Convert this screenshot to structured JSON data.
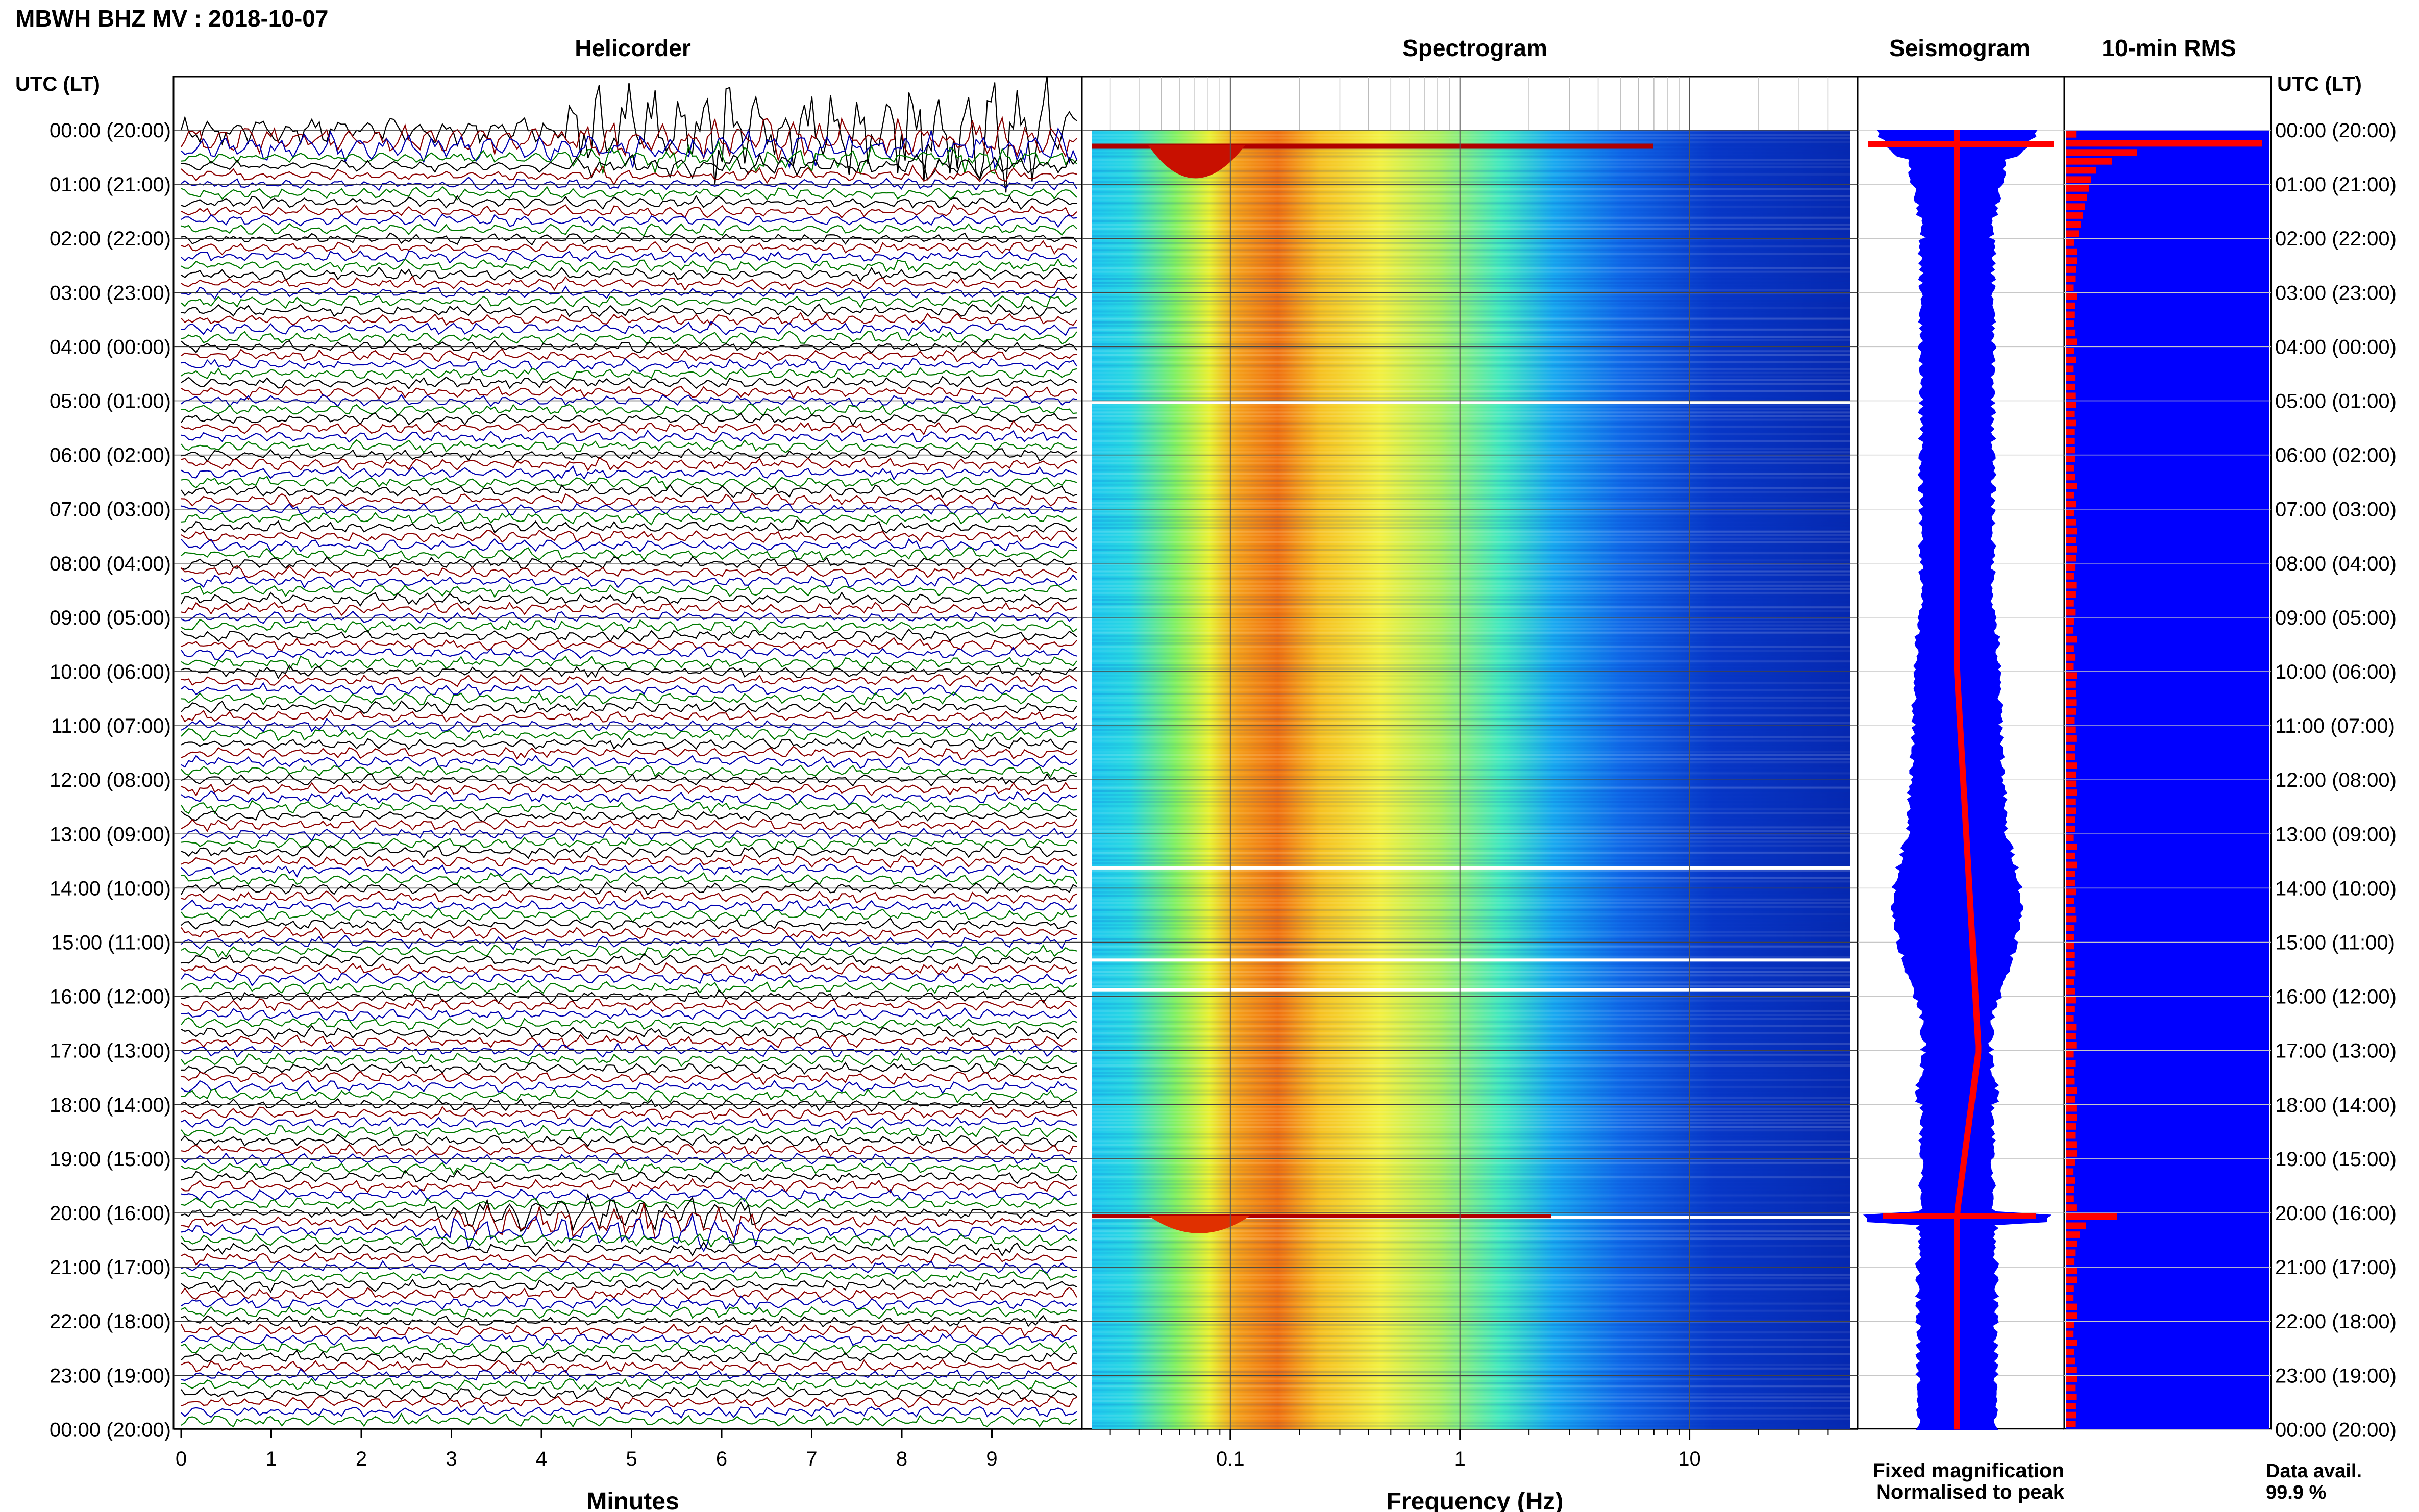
{
  "header": {
    "station_title": "MBWH BHZ MV : 2018-10-07",
    "utc_lt_label": "UTC (LT)"
  },
  "panels": {
    "helicorder": "Helicorder",
    "spectrogram": "Spectrogram",
    "seismogram": "Seismogram",
    "rms": "10-min RMS"
  },
  "colors": {
    "trace_cycle": [
      "#000000",
      "#8b0000",
      "#0000b0",
      "#007a00"
    ],
    "blue": "#0000ff",
    "red": "#ff0000",
    "spectrogram_colormap": "jet"
  },
  "chart_data": [
    {
      "type": "line",
      "panel": "helicorder",
      "xlabel": "Minutes",
      "x_ticks": [
        0,
        1,
        2,
        3,
        4,
        5,
        6,
        7,
        8,
        9
      ],
      "xlim": [
        0,
        10
      ],
      "time_ticks": [
        "00:00 (20:00)",
        "01:00 (21:00)",
        "02:00 (22:00)",
        "03:00 (23:00)",
        "04:00 (00:00)",
        "05:00 (01:00)",
        "06:00 (02:00)",
        "07:00 (03:00)",
        "08:00 (04:00)",
        "09:00 (05:00)",
        "10:00 (06:00)",
        "11:00 (07:00)",
        "12:00 (08:00)",
        "13:00 (09:00)",
        "14:00 (10:00)",
        "15:00 (11:00)",
        "16:00 (12:00)",
        "17:00 (13:00)",
        "18:00 (14:00)",
        "19:00 (15:00)",
        "20:00 (16:00)",
        "21:00 (17:00)",
        "22:00 (18:00)",
        "23:00 (19:00)",
        "00:00 (20:00)"
      ],
      "lines_per_hour": 6,
      "events": [
        {
          "start_utc": "00:00",
          "description_minutes": [
            4.3,
            10
          ]
        },
        {
          "start_utc": "20:00",
          "description_minutes": [
            2.8,
            6.5
          ]
        }
      ]
    },
    {
      "type": "heatmap",
      "panel": "spectrogram",
      "xlabel": "Frequency (Hz)",
      "x_scale": "log",
      "x_ticks": [
        0.1,
        1,
        10
      ],
      "x_tick_labels": [
        "0.1",
        "1",
        "10"
      ],
      "xlim": [
        0.025,
        50
      ],
      "energy_peak_hz": [
        0.15,
        0.4
      ]
    },
    {
      "type": "line",
      "panel": "seismogram",
      "series": [
        {
          "name": "Fixed magnification"
        },
        {
          "name": "Normalised to peak"
        }
      ]
    },
    {
      "type": "bar",
      "panel": "rms",
      "orientation": "horizontal",
      "interval": "10-min",
      "peaks_utc": [
        "00:10",
        "20:00"
      ],
      "data_avail_label": "Data avail.",
      "data_avail_value": "99.9 %"
    }
  ]
}
